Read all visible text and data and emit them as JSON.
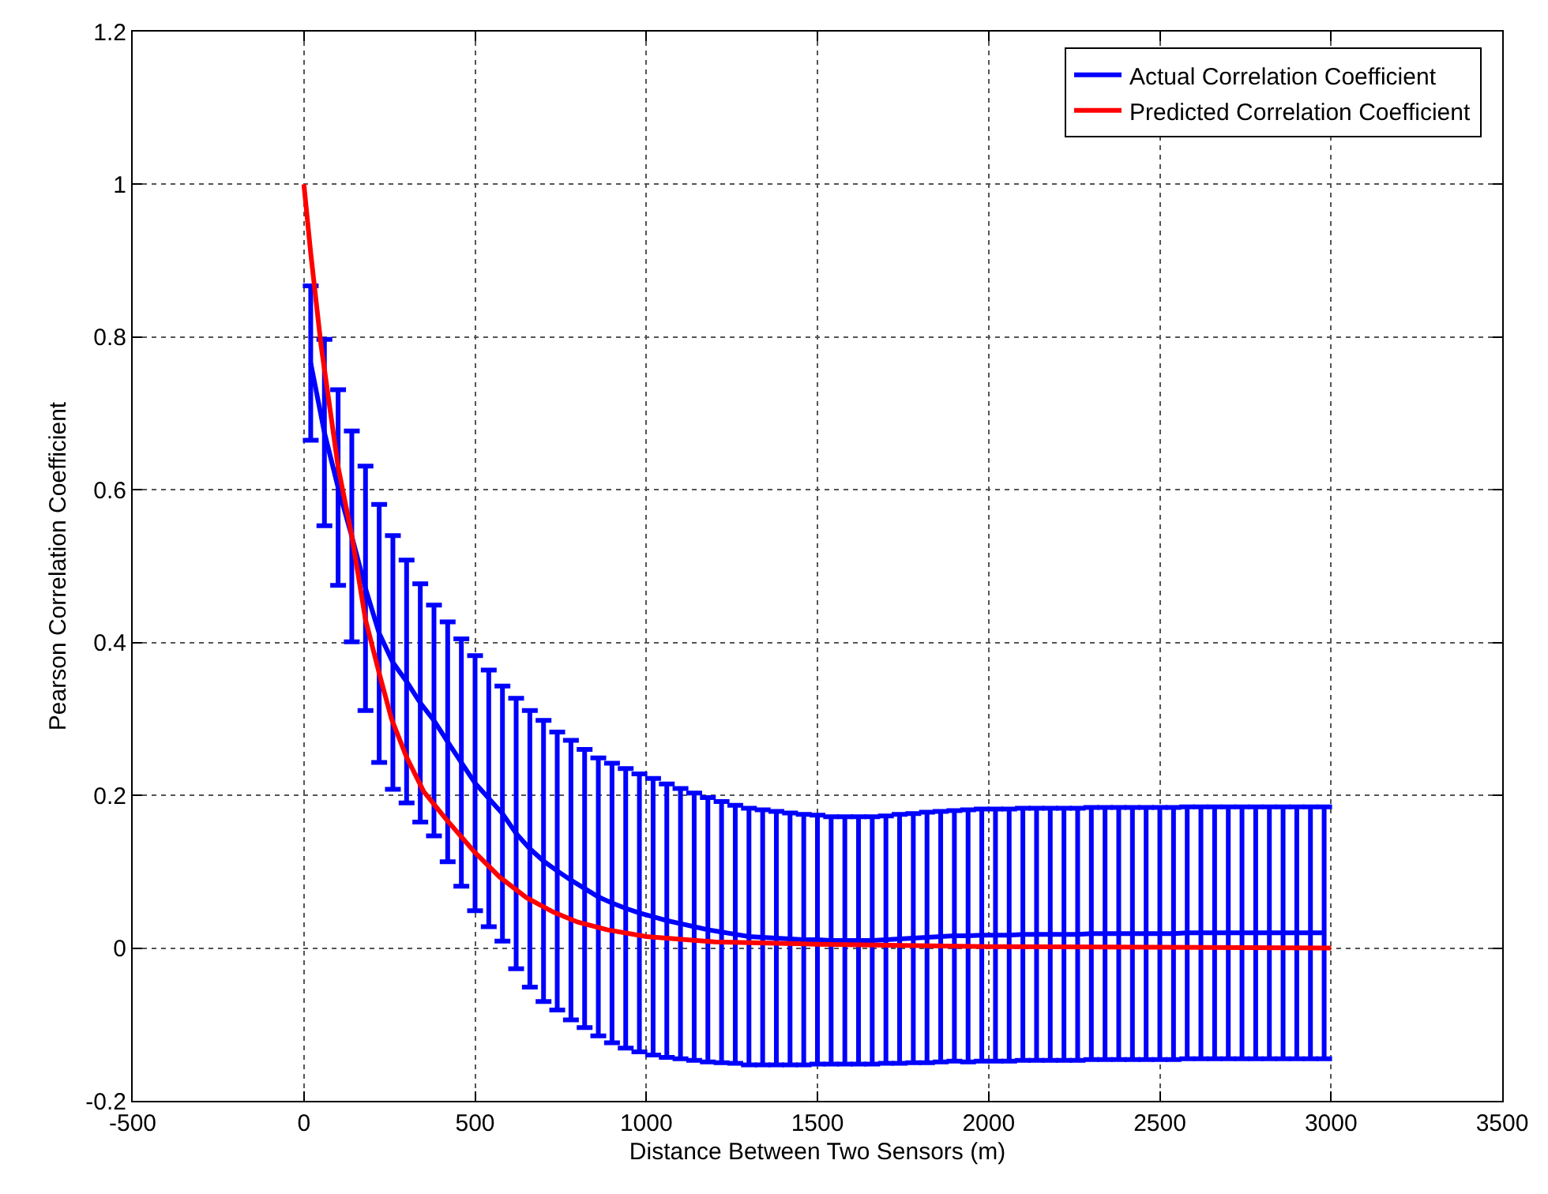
{
  "chart_data": {
    "type": "line",
    "xlabel": "Distance Between Two Sensors (m)",
    "ylabel": "Pearson Correlation Coefficient",
    "x": [
      20,
      60,
      100,
      140,
      180,
      220,
      260,
      300,
      340,
      380,
      420,
      460,
      500,
      540,
      580,
      620,
      660,
      700,
      740,
      780,
      820,
      860,
      900,
      940,
      980,
      1020,
      1060,
      1100,
      1140,
      1180,
      1220,
      1260,
      1300,
      1340,
      1380,
      1420,
      1460,
      1500,
      1540,
      1580,
      1620,
      1660,
      1700,
      1740,
      1780,
      1820,
      1860,
      1900,
      1940,
      1980,
      2020,
      2060,
      2100,
      2140,
      2180,
      2220,
      2260,
      2300,
      2340,
      2380,
      2420,
      2460,
      2500,
      2540,
      2580,
      2620,
      2660,
      2700,
      2740,
      2780,
      2820,
      2860,
      2900,
      2940,
      2980
    ],
    "series": [
      {
        "name": "Actual Correlation Coefficient",
        "color": "#0000ff",
        "values": [
          0.766,
          0.675,
          0.603,
          0.539,
          0.471,
          0.412,
          0.374,
          0.349,
          0.321,
          0.298,
          0.27,
          0.243,
          0.216,
          0.196,
          0.176,
          0.15,
          0.13,
          0.114,
          0.101,
          0.089,
          0.078,
          0.067,
          0.059,
          0.052,
          0.046,
          0.041,
          0.036,
          0.032,
          0.028,
          0.024,
          0.021,
          0.018,
          0.015,
          0.014,
          0.013,
          0.012,
          0.011,
          0.011,
          0.01,
          0.01,
          0.01,
          0.01,
          0.011,
          0.012,
          0.013,
          0.014,
          0.015,
          0.016,
          0.016,
          0.017,
          0.017,
          0.017,
          0.018,
          0.018,
          0.018,
          0.018,
          0.018,
          0.019,
          0.019,
          0.019,
          0.019,
          0.019,
          0.019,
          0.019,
          0.02,
          0.02,
          0.02,
          0.02,
          0.02,
          0.02,
          0.02,
          0.02,
          0.02,
          0.02,
          0.02
        ],
        "errors": [
          0.101,
          0.122,
          0.128,
          0.138,
          0.16,
          0.169,
          0.166,
          0.159,
          0.156,
          0.151,
          0.157,
          0.162,
          0.167,
          0.168,
          0.167,
          0.177,
          0.181,
          0.184,
          0.182,
          0.183,
          0.182,
          0.182,
          0.183,
          0.183,
          0.182,
          0.181,
          0.179,
          0.177,
          0.175,
          0.173,
          0.171,
          0.169,
          0.168,
          0.167,
          0.166,
          0.165,
          0.164,
          0.163,
          0.162,
          0.162,
          0.162,
          0.162,
          0.162,
          0.163,
          0.163,
          0.164,
          0.164,
          0.164,
          0.165,
          0.165,
          0.165,
          0.165,
          0.165,
          0.165,
          0.165,
          0.165,
          0.165,
          0.165,
          0.165,
          0.165,
          0.165,
          0.165,
          0.165,
          0.165,
          0.165,
          0.165,
          0.165,
          0.165,
          0.165,
          0.165,
          0.165,
          0.165,
          0.165,
          0.165,
          0.165
        ]
      },
      {
        "name": "Predicted Correlation Coefficient",
        "color": "#ff0000",
        "x": [
          0,
          20,
          50,
          100,
          140,
          180,
          220,
          256,
          300,
          350,
          413,
          500,
          572,
          650,
          729,
          800,
          886,
          1000,
          1200,
          1500,
          2000,
          2500,
          3000
        ],
        "values": [
          1.0,
          0.91,
          0.79,
          0.63,
          0.54,
          0.43,
          0.36,
          0.3,
          0.25,
          0.205,
          0.17,
          0.125,
          0.093,
          0.066,
          0.047,
          0.034,
          0.024,
          0.015,
          0.008,
          0.005,
          0.002,
          0.001,
          0.0
        ]
      }
    ],
    "xlim": [
      -500,
      3500
    ],
    "xticks": [
      -500,
      0,
      500,
      1000,
      1500,
      2000,
      2500,
      3000,
      3500
    ],
    "ylim": [
      -0.2,
      1.2
    ],
    "yticks": [
      -0.2,
      0,
      0.2,
      0.4,
      0.6,
      0.8,
      1,
      1.2
    ],
    "grid": true,
    "legend": "top right",
    "marker": "none",
    "line_style": "solid"
  }
}
